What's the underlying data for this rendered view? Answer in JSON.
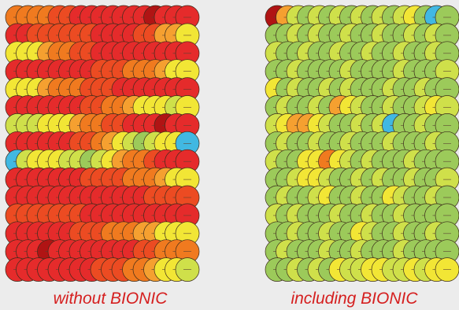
{
  "caption_color": "#d51f1f",
  "palette": {
    "dark_red": "#b01414",
    "red": "#e52b2b",
    "red_orange": "#ec4b22",
    "orange": "#f07a1f",
    "light_orange": "#f5a030",
    "yellow": "#f2e635",
    "yellow_green": "#cfe04a",
    "green": "#9cca5a",
    "teal": "#41b8e2"
  },
  "panels": [
    {
      "id": "without",
      "caption": "without BIONIC",
      "rows": [
        [
          "orange",
          "orange",
          "orange",
          "orange",
          "red_orange",
          "red_orange",
          "red",
          "red",
          "red",
          "red",
          "red",
          "red",
          "red",
          "dark_red",
          "red",
          "red",
          "red"
        ],
        [
          "red",
          "red",
          "red_orange",
          "red_orange",
          "red_orange",
          "red_orange",
          "red_orange",
          "red_orange",
          "red",
          "red",
          "red",
          "red",
          "red_orange",
          "red_orange",
          "light_orange",
          "light_orange",
          "yellow"
        ],
        [
          "yellow",
          "yellow",
          "yellow",
          "light_orange",
          "orange",
          "orange",
          "red_orange",
          "red_orange",
          "red",
          "red",
          "red",
          "red",
          "red",
          "red",
          "red",
          "red",
          "red"
        ],
        [
          "red",
          "red",
          "red",
          "red",
          "red",
          "red",
          "red",
          "red",
          "red_orange",
          "red_orange",
          "red_orange",
          "orange",
          "orange",
          "orange",
          "light_orange",
          "yellow",
          "yellow"
        ],
        [
          "yellow",
          "yellow",
          "yellow",
          "light_orange",
          "orange",
          "orange",
          "orange",
          "red_orange",
          "red_orange",
          "red_orange",
          "red",
          "red",
          "red",
          "red",
          "red",
          "red",
          "red"
        ],
        [
          "red",
          "red",
          "red",
          "red",
          "red",
          "red",
          "red",
          "red_orange",
          "red_orange",
          "orange",
          "orange",
          "light_orange",
          "yellow",
          "yellow",
          "yellow",
          "yellow_green",
          "yellow"
        ],
        [
          "yellow_green",
          "yellow_green",
          "yellow_green",
          "yellow",
          "yellow",
          "yellow",
          "light_orange",
          "orange",
          "orange",
          "red_orange",
          "red_orange",
          "red",
          "red",
          "red",
          "dark_red",
          "red",
          "red"
        ],
        [
          "red",
          "red",
          "red",
          "red",
          "red",
          "red",
          "red_orange",
          "red_orange",
          "orange",
          "light_orange",
          "yellow",
          "yellow_green",
          "green",
          "yellow_green",
          "yellow",
          "yellow",
          "teal"
        ],
        [
          "teal",
          "yellow_green",
          "yellow",
          "yellow",
          "yellow",
          "yellow_green",
          "yellow_green",
          "green",
          "yellow_green",
          "yellow",
          "light_orange",
          "orange",
          "orange",
          "red_orange",
          "red",
          "red",
          "red"
        ],
        [
          "red",
          "red",
          "red",
          "red",
          "red",
          "red",
          "red",
          "red_orange",
          "red_orange",
          "red_orange",
          "red_orange",
          "orange",
          "orange",
          "orange",
          "light_orange",
          "yellow",
          "yellow"
        ],
        [
          "red",
          "red",
          "red",
          "red",
          "red",
          "red",
          "red",
          "red",
          "red",
          "red",
          "red",
          "red",
          "red",
          "red_orange",
          "red_orange",
          "red_orange",
          "red_orange"
        ],
        [
          "red_orange",
          "red_orange",
          "red_orange",
          "red_orange",
          "red_orange",
          "red_orange",
          "red_orange",
          "red",
          "red",
          "red",
          "red",
          "red",
          "red",
          "red",
          "red",
          "red",
          "red"
        ],
        [
          "red",
          "red",
          "red",
          "red",
          "red",
          "red",
          "red_orange",
          "red_orange",
          "red_orange",
          "orange",
          "orange",
          "orange",
          "light_orange",
          "light_orange",
          "yellow",
          "yellow",
          "yellow"
        ],
        [
          "red",
          "red",
          "red",
          "dark_red",
          "red",
          "red",
          "red",
          "red",
          "red",
          "red",
          "red",
          "red",
          "red_orange",
          "red_orange",
          "orange",
          "orange",
          "orange"
        ],
        [
          "red",
          "red",
          "red",
          "red",
          "red",
          "red",
          "red",
          "red",
          "red_orange",
          "red_orange",
          "red_orange",
          "orange",
          "orange",
          "light_orange",
          "yellow",
          "yellow",
          "yellow_green"
        ]
      ]
    },
    {
      "id": "including",
      "caption": "including BIONIC",
      "rows": [
        [
          "dark_red",
          "light_orange",
          "yellow_green",
          "green",
          "yellow_green",
          "green",
          "yellow_green",
          "green",
          "yellow_green",
          "green",
          "yellow_green",
          "green",
          "yellow_green",
          "yellow",
          "green",
          "teal",
          "green"
        ],
        [
          "green",
          "green",
          "yellow_green",
          "green",
          "yellow_green",
          "green",
          "green",
          "yellow_green",
          "green",
          "green",
          "yellow_green",
          "green",
          "green",
          "yellow_green",
          "green",
          "yellow_green",
          "green"
        ],
        [
          "yellow_green",
          "green",
          "green",
          "yellow_green",
          "green",
          "green",
          "yellow_green",
          "green",
          "green",
          "yellow_green",
          "green",
          "green",
          "yellow_green",
          "green",
          "green",
          "yellow_green",
          "green"
        ],
        [
          "green",
          "green",
          "yellow_green",
          "green",
          "green",
          "green",
          "green",
          "yellow_green",
          "green",
          "green",
          "green",
          "green",
          "yellow_green",
          "green",
          "green",
          "green",
          "yellow_green"
        ],
        [
          "yellow",
          "green",
          "yellow_green",
          "green",
          "green",
          "yellow_green",
          "green",
          "yellow_green",
          "green",
          "green",
          "green",
          "yellow_green",
          "green",
          "green",
          "yellow_green",
          "green",
          "green"
        ],
        [
          "green",
          "yellow_green",
          "green",
          "green",
          "yellow_green",
          "green",
          "light_orange",
          "yellow",
          "yellow_green",
          "green",
          "green",
          "yellow_green",
          "green",
          "green",
          "yellow_green",
          "yellow",
          "yellow_green"
        ],
        [
          "yellow_green",
          "yellow",
          "light_orange",
          "light_orange",
          "yellow",
          "yellow_green",
          "green",
          "green",
          "yellow_green",
          "green",
          "yellow_green",
          "teal",
          "green",
          "green",
          "yellow_green",
          "green",
          "green"
        ],
        [
          "green",
          "yellow_green",
          "green",
          "green",
          "yellow_green",
          "green",
          "green",
          "yellow_green",
          "green",
          "green",
          "green",
          "yellow_green",
          "green",
          "green",
          "green",
          "yellow_green",
          "green"
        ],
        [
          "yellow_green",
          "green",
          "green",
          "yellow",
          "yellow",
          "orange",
          "yellow",
          "yellow_green",
          "green",
          "yellow_green",
          "green",
          "green",
          "green",
          "yellow_green",
          "green",
          "green",
          "green"
        ],
        [
          "green",
          "green",
          "yellow_green",
          "yellow",
          "yellow",
          "yellow_green",
          "green",
          "green",
          "yellow_green",
          "green",
          "yellow_green",
          "green",
          "green",
          "yellow_green",
          "green",
          "green",
          "yellow_green"
        ],
        [
          "green",
          "yellow_green",
          "green",
          "green",
          "yellow_green",
          "yellow",
          "green",
          "green",
          "yellow_green",
          "green",
          "green",
          "yellow",
          "yellow_green",
          "green",
          "green",
          "yellow_green",
          "green"
        ],
        [
          "yellow_green",
          "green",
          "yellow_green",
          "green",
          "green",
          "green",
          "yellow_green",
          "green",
          "green",
          "yellow_green",
          "green",
          "green",
          "yellow_green",
          "green",
          "green",
          "green",
          "green"
        ],
        [
          "green",
          "green",
          "yellow_green",
          "green",
          "green",
          "yellow_green",
          "green",
          "green",
          "yellow",
          "yellow_green",
          "green",
          "green",
          "yellow_green",
          "green",
          "green",
          "yellow_green",
          "green"
        ],
        [
          "green",
          "yellow_green",
          "green",
          "green",
          "green",
          "yellow_green",
          "green",
          "green",
          "yellow_green",
          "green",
          "green",
          "green",
          "yellow_green",
          "green",
          "green",
          "green",
          "green"
        ],
        [
          "green",
          "green",
          "yellow_green",
          "green",
          "yellow_green",
          "green",
          "yellow",
          "yellow_green",
          "yellow_green",
          "yellow",
          "yellow",
          "yellow_green",
          "yellow_green",
          "yellow",
          "yellow_green",
          "yellow",
          "yellow"
        ]
      ]
    }
  ]
}
